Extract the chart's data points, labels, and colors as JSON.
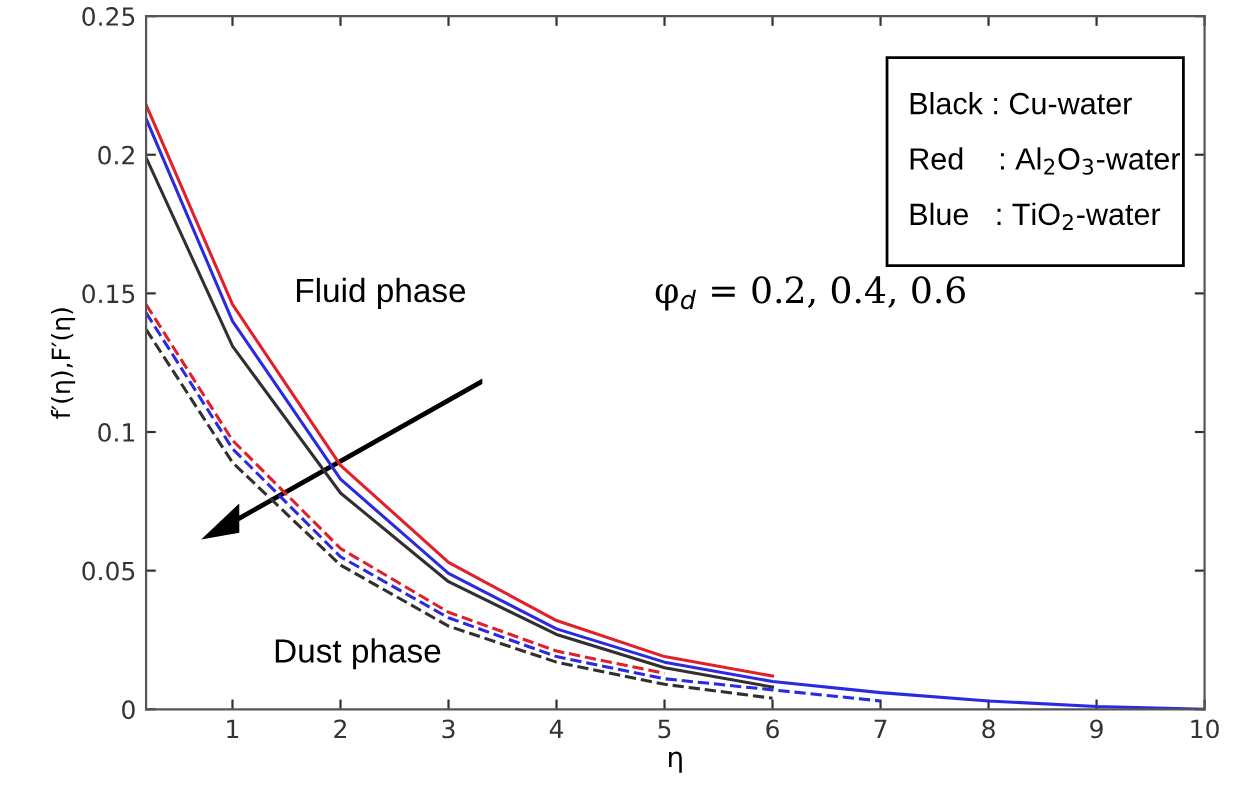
{
  "chart_data": {
    "type": "line",
    "xlabel": "η",
    "ylabel": "f′(η),F′(η)",
    "x": [
      0.2,
      1,
      2,
      3,
      4,
      5,
      6,
      7,
      8,
      9,
      10
    ],
    "xlim": [
      0.2,
      10
    ],
    "ylim": [
      0,
      0.25
    ],
    "xticks": [
      1,
      2,
      3,
      4,
      5,
      6,
      7,
      8,
      9,
      10
    ],
    "yticks": [
      0,
      0.05,
      0.1,
      0.15,
      0.2,
      0.25
    ],
    "grid": false,
    "legend": false,
    "series": [
      {
        "color": "#303030",
        "line_style": "solid",
        "values": [
          0.199,
          0.131,
          0.078,
          0.046,
          0.027,
          0.015,
          0.008,
          null,
          null,
          null,
          null
        ]
      },
      {
        "color": "#e0202a",
        "line_style": "solid",
        "values": [
          0.218,
          0.146,
          0.088,
          0.053,
          0.032,
          0.019,
          0.012,
          null,
          null,
          null,
          null
        ]
      },
      {
        "color": "#2a2ae0",
        "line_style": "solid",
        "values": [
          0.213,
          0.14,
          0.083,
          0.049,
          0.029,
          0.017,
          0.01,
          0.006,
          0.003,
          0.001,
          0
        ]
      },
      {
        "color": "#303030",
        "line_style": "dashed",
        "values": [
          0.137,
          0.089,
          0.052,
          0.03,
          0.017,
          0.009,
          0.004,
          null,
          null,
          null,
          null
        ]
      },
      {
        "color": "#e0202a",
        "line_style": "dashed",
        "values": [
          0.146,
          0.097,
          0.058,
          0.035,
          0.021,
          0.013,
          null,
          null,
          null,
          null,
          null
        ]
      },
      {
        "color": "#2a2ae0",
        "line_style": "dashed",
        "values": [
          0.143,
          0.094,
          0.055,
          0.033,
          0.019,
          0.011,
          0.007,
          0.003,
          null,
          null,
          null
        ]
      }
    ],
    "annotations": [
      "Fluid phase",
      "φ$_{d}$ = 0.2, 0.4, 0.6",
      "Dust phase",
      "Black : Cu-water",
      "Red    : Al$_{2}$O$_{3}$-water",
      "Blue   : TiO$_{2}$-water"
    ]
  }
}
